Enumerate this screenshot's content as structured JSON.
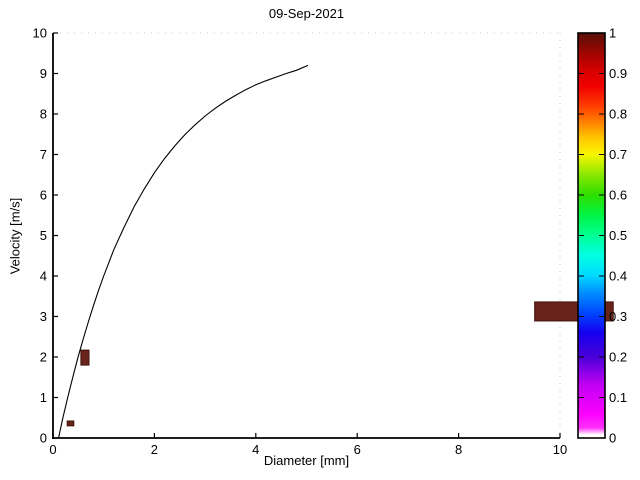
{
  "chart_data": {
    "type": "line+heatmap",
    "title": "09-Sep-2021",
    "xlabel": "Diameter [mm]",
    "ylabel": "Velocity [m/s]",
    "xlim": [
      0,
      10
    ],
    "ylim": [
      0,
      10
    ],
    "grid": false,
    "xticks": {
      "values": [
        0,
        2,
        4,
        6,
        8,
        10
      ],
      "labels": [
        "0",
        "2",
        "4",
        "6",
        "8",
        "10"
      ]
    },
    "yticks": {
      "values": [
        0,
        1,
        2,
        3,
        4,
        5,
        6,
        7,
        8,
        9,
        10
      ],
      "labels": [
        "0",
        "1",
        "2",
        "3",
        "4",
        "5",
        "6",
        "7",
        "8",
        "9",
        "10"
      ]
    },
    "curve": {
      "name": "raindrop-terminal-velocity-curve",
      "color": "#000000",
      "x": [
        0.11,
        0.2,
        0.3,
        0.4,
        0.5,
        0.6,
        0.7,
        0.8,
        0.9,
        1.0,
        1.2,
        1.4,
        1.6,
        1.8,
        2.0,
        2.2,
        2.4,
        2.6,
        2.8,
        3.0,
        3.2,
        3.4,
        3.6,
        3.8,
        4.0,
        4.2,
        4.4,
        4.6,
        4.8,
        5.03
      ],
      "y": [
        0.01,
        0.52,
        1.05,
        1.55,
        2.02,
        2.46,
        2.88,
        3.28,
        3.65,
        4.0,
        4.65,
        5.2,
        5.71,
        6.15,
        6.55,
        6.9,
        7.21,
        7.49,
        7.73,
        7.95,
        8.14,
        8.31,
        8.46,
        8.6,
        8.72,
        8.82,
        8.91,
        9.0,
        9.08,
        9.2
      ]
    },
    "cells": [
      {
        "x0": 0.55,
        "x1": 0.71,
        "y0": 1.8,
        "y1": 2.17,
        "value": 1.0
      },
      {
        "x0": 0.28,
        "x1": 0.41,
        "y0": 0.3,
        "y1": 0.42,
        "value": 1.0
      },
      {
        "x0": 9.5,
        "x1": 11.05,
        "y0": 2.89,
        "y1": 3.36,
        "value": 1.0
      }
    ],
    "cell_fill": "#69241a",
    "cell_edge": "#3f120b",
    "colorbar": {
      "min": 0,
      "max": 1,
      "tick_values": [
        0,
        0.1,
        0.2,
        0.3,
        0.4,
        0.5,
        0.6,
        0.7,
        0.8,
        0.9,
        1
      ],
      "tick_labels": [
        "0",
        "0.1",
        "0.2",
        "0.3",
        "0.4",
        "0.5",
        "0.6",
        "0.7",
        "0.8",
        "0.9",
        "1"
      ],
      "gradient": [
        [
          0.0,
          "#ffffff"
        ],
        [
          0.008,
          "#ffffff"
        ],
        [
          0.025,
          "#ff30fa"
        ],
        [
          0.06,
          "#fa00ff"
        ],
        [
          0.13,
          "#c400f4"
        ],
        [
          0.2,
          "#4a00d8"
        ],
        [
          0.26,
          "#1500f0"
        ],
        [
          0.31,
          "#0048ff"
        ],
        [
          0.36,
          "#0090ff"
        ],
        [
          0.4,
          "#00d8ff"
        ],
        [
          0.45,
          "#00ffe4"
        ],
        [
          0.5,
          "#00ff94"
        ],
        [
          0.55,
          "#00f545"
        ],
        [
          0.6,
          "#2ede00"
        ],
        [
          0.65,
          "#8ae800"
        ],
        [
          0.7,
          "#f8f600"
        ],
        [
          0.74,
          "#ffc800"
        ],
        [
          0.78,
          "#ff8000"
        ],
        [
          0.82,
          "#ff3c00"
        ],
        [
          0.87,
          "#f00000"
        ],
        [
          0.91,
          "#d40000"
        ],
        [
          0.95,
          "#a00500"
        ],
        [
          1.0,
          "#571009"
        ]
      ]
    },
    "colors": {
      "axis": "#000000",
      "faint_border": "#c4c4c4",
      "background": "#ffffff"
    }
  }
}
